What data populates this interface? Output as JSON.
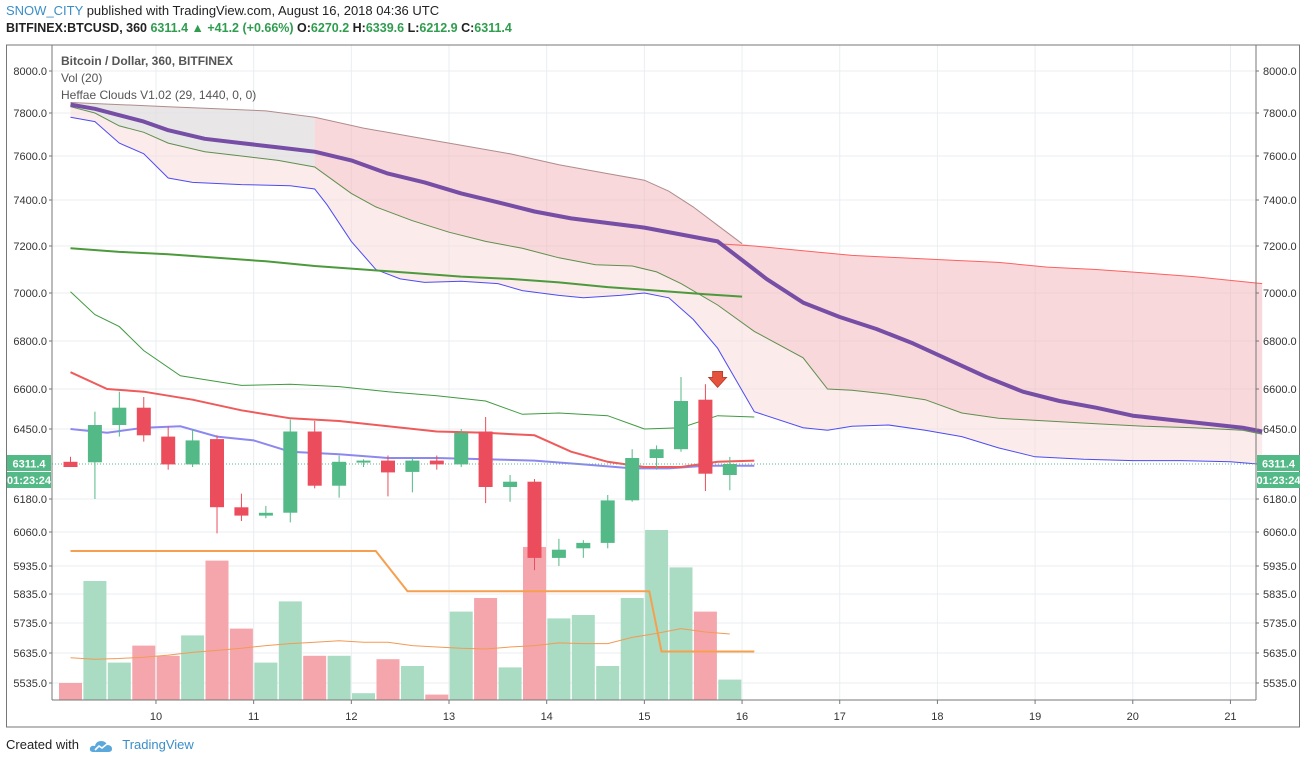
{
  "header": {
    "author": "SNOW_CITY",
    "published": "published with TradingView.com, August 16, 2018 04:36 UTC",
    "symbol": "BITFINEX:BTCUSD, 360",
    "last": "6311.4",
    "change": "+41.2 (+0.66%)",
    "o_label": "O:",
    "o": "6270.2",
    "h_label": "H:",
    "h": "6339.6",
    "l_label": "L:",
    "l": "6212.9",
    "c_label": "C:",
    "c": "6311.4"
  },
  "footer": {
    "created": "Created with",
    "brand": "TradingView"
  },
  "colors": {
    "up": "#53b987",
    "down": "#eb4d5c",
    "vol_up": "#a9dcc3",
    "vol_down": "#f5a6ad",
    "baseline": "#764ea6",
    "cloud_fast": "#4c4cf2",
    "cloud_slow": "#ff6060"
  },
  "chart_data": {
    "type": "candlestick",
    "legend": [
      "Bitcoin / Dollar, 360, BITFINEX",
      "Vol (20)",
      "Heffae Clouds V1.02 (29, 1440, 0, 0)"
    ],
    "x_labels": [
      {
        "label": "10",
        "d": 3.5
      },
      {
        "label": "11",
        "d": 7.5
      },
      {
        "label": "12",
        "d": 11.5
      },
      {
        "label": "13",
        "d": 15.5
      },
      {
        "label": "14",
        "d": 19.5
      },
      {
        "label": "15",
        "d": 23.5
      },
      {
        "label": "16",
        "d": 27.5
      },
      {
        "label": "17",
        "d": 31.5
      },
      {
        "label": "18",
        "d": 35.5
      },
      {
        "label": "19",
        "d": 39.5
      },
      {
        "label": "20",
        "d": 43.5
      },
      {
        "label": "21",
        "d": 47.5
      }
    ],
    "price_ticks": [
      "8000.0",
      "7800.0",
      "7600.0",
      "7400.0",
      "7200.0",
      "7000.0",
      "6800.0",
      "6600.0",
      "6450.0",
      "6311.4",
      "6180.0",
      "6060.0",
      "5935.0",
      "5835.0",
      "5735.0",
      "5635.0",
      "5535.0"
    ],
    "price_tag": "6311.4",
    "countdown": "01:23:24",
    "candles": [
      {
        "o": 6320,
        "h": 6340,
        "l": 6300,
        "c": 6300
      },
      {
        "o": 6318,
        "h": 6515,
        "l": 6180,
        "c": 6465
      },
      {
        "o": 6465,
        "h": 6590,
        "l": 6420,
        "c": 6530
      },
      {
        "o": 6530,
        "h": 6570,
        "l": 6400,
        "c": 6425
      },
      {
        "o": 6420,
        "h": 6460,
        "l": 6290,
        "c": 6310
      },
      {
        "o": 6310,
        "h": 6450,
        "l": 6300,
        "c": 6405
      },
      {
        "o": 6410,
        "h": 6425,
        "l": 6055,
        "c": 6150
      },
      {
        "o": 6150,
        "h": 6200,
        "l": 6100,
        "c": 6120
      },
      {
        "o": 6120,
        "h": 6155,
        "l": 6110,
        "c": 6130
      },
      {
        "o": 6130,
        "h": 6485,
        "l": 6095,
        "c": 6440
      },
      {
        "o": 6440,
        "h": 6480,
        "l": 6220,
        "c": 6230
      },
      {
        "o": 6230,
        "h": 6345,
        "l": 6185,
        "c": 6320
      },
      {
        "o": 6320,
        "h": 6330,
        "l": 6300,
        "c": 6325
      },
      {
        "o": 6325,
        "h": 6345,
        "l": 6190,
        "c": 6280
      },
      {
        "o": 6282,
        "h": 6335,
        "l": 6205,
        "c": 6325
      },
      {
        "o": 6325,
        "h": 6345,
        "l": 6290,
        "c": 6310
      },
      {
        "o": 6310,
        "h": 6450,
        "l": 6300,
        "c": 6435
      },
      {
        "o": 6440,
        "h": 6495,
        "l": 6165,
        "c": 6225
      },
      {
        "o": 6225,
        "h": 6270,
        "l": 6170,
        "c": 6245
      },
      {
        "o": 6245,
        "h": 6255,
        "l": 5920,
        "c": 5965
      },
      {
        "o": 5965,
        "h": 6035,
        "l": 5935,
        "c": 5995
      },
      {
        "o": 6000,
        "h": 6030,
        "l": 5965,
        "c": 6020
      },
      {
        "o": 6020,
        "h": 6195,
        "l": 6000,
        "c": 6175
      },
      {
        "o": 6175,
        "h": 6370,
        "l": 6170,
        "c": 6335
      },
      {
        "o": 6335,
        "h": 6385,
        "l": 6290,
        "c": 6370
      },
      {
        "o": 6370,
        "h": 6650,
        "l": 6360,
        "c": 6555
      },
      {
        "o": 6560,
        "h": 6620,
        "l": 6210,
        "c": 6275
      },
      {
        "o": 6270.2,
        "h": 6339.6,
        "l": 6212.9,
        "c": 6311.4
      }
    ],
    "volume": [
      25,
      175,
      55,
      80,
      65,
      95,
      205,
      105,
      55,
      145,
      65,
      65,
      10,
      60,
      50,
      8,
      130,
      150,
      48,
      225,
      120,
      125,
      50,
      150,
      250,
      195,
      130,
      30
    ],
    "volume_ma": [
      62,
      60,
      61,
      63,
      66,
      70,
      73,
      76,
      80,
      83,
      85,
      87,
      85,
      85,
      80,
      78,
      76,
      75,
      78,
      80,
      84,
      83,
      83,
      92,
      98,
      105,
      100,
      97
    ],
    "support_line": [
      {
        "d": 0,
        "v": 5990
      },
      {
        "d": 12.5,
        "v": 5990
      },
      {
        "d": 13.8,
        "v": 5845
      },
      {
        "d": 23.7,
        "v": 5845
      },
      {
        "d": 24.2,
        "v": 5640
      },
      {
        "d": 28,
        "v": 5640
      }
    ],
    "ema_red": [
      {
        "d": 0,
        "v": 6670
      },
      {
        "d": 1.5,
        "v": 6600
      },
      {
        "d": 3,
        "v": 6590
      },
      {
        "d": 5,
        "v": 6560
      },
      {
        "d": 7,
        "v": 6520
      },
      {
        "d": 9,
        "v": 6490
      },
      {
        "d": 11,
        "v": 6480
      },
      {
        "d": 13,
        "v": 6460
      },
      {
        "d": 15,
        "v": 6440
      },
      {
        "d": 17,
        "v": 6435
      },
      {
        "d": 19,
        "v": 6425
      },
      {
        "d": 20.5,
        "v": 6360
      },
      {
        "d": 22,
        "v": 6320
      },
      {
        "d": 23.5,
        "v": 6300
      },
      {
        "d": 25,
        "v": 6300
      },
      {
        "d": 26.5,
        "v": 6320
      },
      {
        "d": 28,
        "v": 6325
      }
    ],
    "ema_blue": [
      {
        "d": 0,
        "v": 6450
      },
      {
        "d": 1.5,
        "v": 6435
      },
      {
        "d": 3,
        "v": 6455
      },
      {
        "d": 4.5,
        "v": 6460
      },
      {
        "d": 6,
        "v": 6420
      },
      {
        "d": 7.5,
        "v": 6405
      },
      {
        "d": 9,
        "v": 6360
      },
      {
        "d": 11,
        "v": 6350
      },
      {
        "d": 13,
        "v": 6335
      },
      {
        "d": 15,
        "v": 6335
      },
      {
        "d": 17,
        "v": 6330
      },
      {
        "d": 19,
        "v": 6325
      },
      {
        "d": 21,
        "v": 6310
      },
      {
        "d": 23,
        "v": 6295
      },
      {
        "d": 24.5,
        "v": 6295
      },
      {
        "d": 26,
        "v": 6305
      },
      {
        "d": 28,
        "v": 6305
      }
    ],
    "band_green_upper": [
      {
        "d": 0,
        "v": 7005
      },
      {
        "d": 1,
        "v": 6910
      },
      {
        "d": 2,
        "v": 6860
      },
      {
        "d": 3,
        "v": 6760
      },
      {
        "d": 4.5,
        "v": 6655
      },
      {
        "d": 7,
        "v": 6615
      },
      {
        "d": 9,
        "v": 6620
      },
      {
        "d": 11,
        "v": 6610
      },
      {
        "d": 13,
        "v": 6590
      },
      {
        "d": 15,
        "v": 6575
      },
      {
        "d": 17,
        "v": 6555
      },
      {
        "d": 18.5,
        "v": 6505
      },
      {
        "d": 20,
        "v": 6510
      },
      {
        "d": 22,
        "v": 6500
      },
      {
        "d": 23.5,
        "v": 6450
      },
      {
        "d": 25,
        "v": 6455
      },
      {
        "d": 26.5,
        "v": 6500
      },
      {
        "d": 28,
        "v": 6495
      }
    ],
    "sma_green": [
      {
        "d": 0,
        "v": 7190
      },
      {
        "d": 2,
        "v": 7175
      },
      {
        "d": 4,
        "v": 7165
      },
      {
        "d": 6,
        "v": 7150
      },
      {
        "d": 8,
        "v": 7135
      },
      {
        "d": 10,
        "v": 7115
      },
      {
        "d": 12,
        "v": 7100
      },
      {
        "d": 14,
        "v": 7085
      },
      {
        "d": 16,
        "v": 7070
      },
      {
        "d": 18,
        "v": 7060
      },
      {
        "d": 20,
        "v": 7045
      },
      {
        "d": 22,
        "v": 7025
      },
      {
        "d": 24,
        "v": 7010
      },
      {
        "d": 26,
        "v": 6995
      },
      {
        "d": 27.5,
        "v": 6985
      }
    ],
    "cloud_fast": [
      {
        "d": 0,
        "v": 7780
      },
      {
        "d": 1,
        "v": 7760
      },
      {
        "d": 2,
        "v": 7660
      },
      {
        "d": 3,
        "v": 7610
      },
      {
        "d": 4,
        "v": 7500
      },
      {
        "d": 5,
        "v": 7480
      },
      {
        "d": 7,
        "v": 7470
      },
      {
        "d": 9,
        "v": 7465
      },
      {
        "d": 10,
        "v": 7450
      },
      {
        "d": 10.5,
        "v": 7380
      },
      {
        "d": 11.5,
        "v": 7220
      },
      {
        "d": 12.5,
        "v": 7100
      },
      {
        "d": 13.5,
        "v": 7060
      },
      {
        "d": 14.5,
        "v": 7045
      },
      {
        "d": 16,
        "v": 7050
      },
      {
        "d": 17.5,
        "v": 7040
      },
      {
        "d": 18.5,
        "v": 7010
      },
      {
        "d": 20,
        "v": 6990
      },
      {
        "d": 21,
        "v": 6980
      },
      {
        "d": 22.5,
        "v": 6990
      },
      {
        "d": 23.5,
        "v": 7000
      },
      {
        "d": 24.5,
        "v": 6980
      },
      {
        "d": 25.5,
        "v": 6890
      },
      {
        "d": 26.5,
        "v": 6770
      },
      {
        "d": 28,
        "v": 6515
      },
      {
        "d": 30,
        "v": 6455
      },
      {
        "d": 31,
        "v": 6445
      },
      {
        "d": 32,
        "v": 6460
      },
      {
        "d": 33.5,
        "v": 6465
      },
      {
        "d": 35,
        "v": 6445
      },
      {
        "d": 36.5,
        "v": 6420
      },
      {
        "d": 38,
        "v": 6375
      },
      {
        "d": 39.5,
        "v": 6340
      },
      {
        "d": 41.5,
        "v": 6330
      },
      {
        "d": 43.5,
        "v": 6325
      },
      {
        "d": 45.5,
        "v": 6325
      },
      {
        "d": 47.5,
        "v": 6320
      },
      {
        "d": 48.8,
        "v": 6310
      }
    ],
    "cloud_mid": [
      {
        "d": 0,
        "v": 7830
      },
      {
        "d": 1,
        "v": 7800
      },
      {
        "d": 2,
        "v": 7740
      },
      {
        "d": 3,
        "v": 7710
      },
      {
        "d": 4,
        "v": 7660
      },
      {
        "d": 5.5,
        "v": 7620
      },
      {
        "d": 7,
        "v": 7600
      },
      {
        "d": 8.5,
        "v": 7580
      },
      {
        "d": 10,
        "v": 7550
      },
      {
        "d": 10.5,
        "v": 7510
      },
      {
        "d": 11.5,
        "v": 7430
      },
      {
        "d": 12.5,
        "v": 7370
      },
      {
        "d": 14,
        "v": 7310
      },
      {
        "d": 15.5,
        "v": 7260
      },
      {
        "d": 17,
        "v": 7220
      },
      {
        "d": 18.5,
        "v": 7190
      },
      {
        "d": 20,
        "v": 7150
      },
      {
        "d": 21.5,
        "v": 7120
      },
      {
        "d": 23,
        "v": 7115
      },
      {
        "d": 24,
        "v": 7090
      },
      {
        "d": 25,
        "v": 7040
      },
      {
        "d": 26.5,
        "v": 6950
      },
      {
        "d": 28,
        "v": 6840
      },
      {
        "d": 30,
        "v": 6730
      },
      {
        "d": 31,
        "v": 6600
      },
      {
        "d": 32,
        "v": 6595
      },
      {
        "d": 33.5,
        "v": 6580
      },
      {
        "d": 35,
        "v": 6560
      },
      {
        "d": 36.5,
        "v": 6510
      },
      {
        "d": 38,
        "v": 6490
      },
      {
        "d": 40,
        "v": 6480
      },
      {
        "d": 42,
        "v": 6470
      },
      {
        "d": 44,
        "v": 6460
      },
      {
        "d": 46,
        "v": 6455
      },
      {
        "d": 48,
        "v": 6445
      },
      {
        "d": 48.8,
        "v": 6430
      }
    ],
    "baseline": [
      {
        "d": 0,
        "v": 7840
      },
      {
        "d": 1,
        "v": 7820
      },
      {
        "d": 2,
        "v": 7790
      },
      {
        "d": 3,
        "v": 7760
      },
      {
        "d": 4,
        "v": 7720
      },
      {
        "d": 5.5,
        "v": 7680
      },
      {
        "d": 7,
        "v": 7660
      },
      {
        "d": 8.5,
        "v": 7640
      },
      {
        "d": 10,
        "v": 7620
      },
      {
        "d": 11.5,
        "v": 7580
      },
      {
        "d": 13,
        "v": 7520
      },
      {
        "d": 14.5,
        "v": 7480
      },
      {
        "d": 16,
        "v": 7430
      },
      {
        "d": 17.5,
        "v": 7390
      },
      {
        "d": 19,
        "v": 7350
      },
      {
        "d": 20.5,
        "v": 7320
      },
      {
        "d": 22,
        "v": 7300
      },
      {
        "d": 23.5,
        "v": 7280
      },
      {
        "d": 25,
        "v": 7250
      },
      {
        "d": 26.5,
        "v": 7220
      },
      {
        "d": 27.5,
        "v": 7140
      },
      {
        "d": 28.5,
        "v": 7060
      },
      {
        "d": 30,
        "v": 6960
      },
      {
        "d": 31.5,
        "v": 6900
      },
      {
        "d": 33,
        "v": 6850
      },
      {
        "d": 34.5,
        "v": 6790
      },
      {
        "d": 36,
        "v": 6720
      },
      {
        "d": 37.5,
        "v": 6650
      },
      {
        "d": 39,
        "v": 6590
      },
      {
        "d": 40.5,
        "v": 6555
      },
      {
        "d": 42,
        "v": 6530
      },
      {
        "d": 43.5,
        "v": 6500
      },
      {
        "d": 45,
        "v": 6485
      },
      {
        "d": 46.5,
        "v": 6470
      },
      {
        "d": 48,
        "v": 6455
      },
      {
        "d": 48.8,
        "v": 6440
      }
    ],
    "cloud_slow_upper": [
      {
        "d": 0,
        "v": 7850
      },
      {
        "d": 2,
        "v": 7840
      },
      {
        "d": 4,
        "v": 7830
      },
      {
        "d": 6,
        "v": 7820
      },
      {
        "d": 8,
        "v": 7810
      },
      {
        "d": 10,
        "v": 7780
      },
      {
        "d": 12,
        "v": 7730
      },
      {
        "d": 14,
        "v": 7690
      },
      {
        "d": 16,
        "v": 7650
      },
      {
        "d": 18,
        "v": 7610
      },
      {
        "d": 20,
        "v": 7560
      },
      {
        "d": 22,
        "v": 7520
      },
      {
        "d": 23.5,
        "v": 7490
      },
      {
        "d": 24.5,
        "v": 7440
      },
      {
        "d": 25.5,
        "v": 7370
      },
      {
        "d": 26.5,
        "v": 7290
      },
      {
        "d": 27.5,
        "v": 7210
      }
    ],
    "cloud_slow": [
      {
        "d": 26.5,
        "v": 7210
      },
      {
        "d": 28,
        "v": 7200
      },
      {
        "d": 30,
        "v": 7180
      },
      {
        "d": 32,
        "v": 7160
      },
      {
        "d": 34,
        "v": 7150
      },
      {
        "d": 36,
        "v": 7140
      },
      {
        "d": 38,
        "v": 7130
      },
      {
        "d": 40,
        "v": 7110
      },
      {
        "d": 42,
        "v": 7100
      },
      {
        "d": 44,
        "v": 7085
      },
      {
        "d": 46,
        "v": 7070
      },
      {
        "d": 48.8,
        "v": 7040
      }
    ],
    "signal_arrow": {
      "d": 26.5,
      "v": 6640
    }
  }
}
